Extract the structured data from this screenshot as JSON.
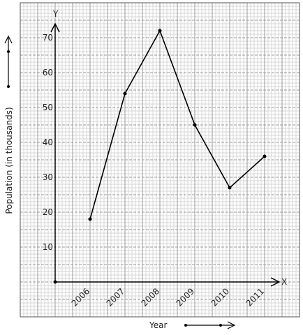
{
  "chart_data": {
    "type": "line",
    "xlabel": "Year",
    "ylabel": "Population (in thousands)",
    "x_axis_letter": "X",
    "y_axis_letter": "Y",
    "categories": [
      "2006",
      "2007",
      "2008",
      "2009",
      "2010",
      "2011"
    ],
    "values": [
      18,
      54,
      72,
      45,
      27,
      36
    ],
    "yticks": [
      "10",
      "20",
      "30",
      "40",
      "50",
      "60",
      "70"
    ],
    "ylim": [
      -10,
      80
    ],
    "grid": true
  }
}
